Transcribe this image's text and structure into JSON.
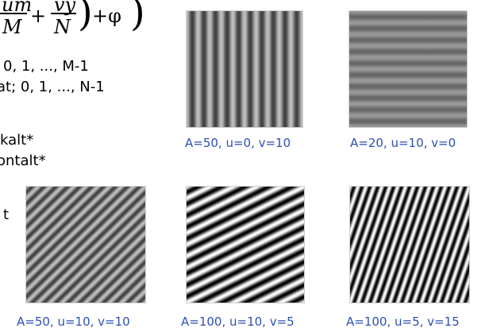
{
  "formula": {
    "num_left": "um",
    "den_left": "M",
    "plus": "+",
    "num_right": "vy",
    "den_right": "N",
    "close_paren": ")",
    "tail": "+φ",
    "right_paren": ")"
  },
  "text_lines": [
    "0, 1, ..., M-1",
    "at; 0, 1, ..., N-1",
    "kalt*",
    "ontalt*",
    "t"
  ],
  "images": [
    {
      "caption": "A=50, u=0, v=10",
      "A": 50,
      "u": 0,
      "v": 10
    },
    {
      "caption": "A=20, u=10, v=0",
      "A": 20,
      "u": 10,
      "v": 0
    },
    {
      "caption": "A=50, u=10, v=10",
      "A": 50,
      "u": 10,
      "v": 10
    },
    {
      "caption": "A=100, u=10, v=5",
      "A": 100,
      "u": 10,
      "v": 5
    },
    {
      "caption": "A=100, u=5, v=15",
      "A": 100,
      "u": 5,
      "v": 15
    }
  ],
  "colors": {
    "caption": "#2e4fb2",
    "background": "#ffffff"
  }
}
